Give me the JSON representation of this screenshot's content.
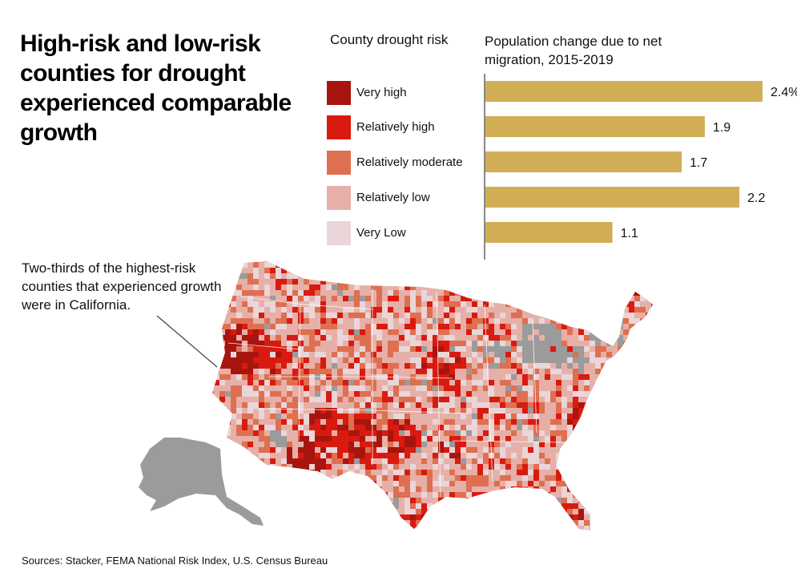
{
  "header": {
    "title": "High-risk and low-risk counties for drought experienced comparable growth"
  },
  "legend": {
    "title": "County drought risk",
    "items": [
      {
        "label": "Very high",
        "color": "#a8150e"
      },
      {
        "label": "Relatively high",
        "color": "#d91a10"
      },
      {
        "label": "Relatively moderate",
        "color": "#de6f50"
      },
      {
        "label": "Relatively low",
        "color": "#e6b0a8"
      },
      {
        "label": "Very Low",
        "color": "#ead5d8"
      }
    ]
  },
  "chart_data": {
    "type": "bar",
    "orientation": "horizontal",
    "title": "Population change due to net migration, 2015-2019",
    "categories": [
      "Very high",
      "Relatively high",
      "Relatively moderate",
      "Relatively low",
      "Very Low"
    ],
    "values": [
      2.4,
      1.9,
      1.7,
      2.2,
      1.1
    ],
    "value_labels": [
      "2.4%",
      "1.9",
      "1.7",
      "2.2",
      "1.1"
    ],
    "units": "%",
    "xlim": [
      0,
      2.4
    ],
    "bar_color": "#d1ae56",
    "grid": false,
    "legend": "left"
  },
  "annotation": {
    "text": "Two-thirds of the highest-risk counties that experienced growth were in California."
  },
  "map": {
    "no_data_color": "#9b9b9b"
  },
  "footer": {
    "source": "Sources: Stacker, FEMA National Risk Index, U.S. Census Bureau"
  }
}
